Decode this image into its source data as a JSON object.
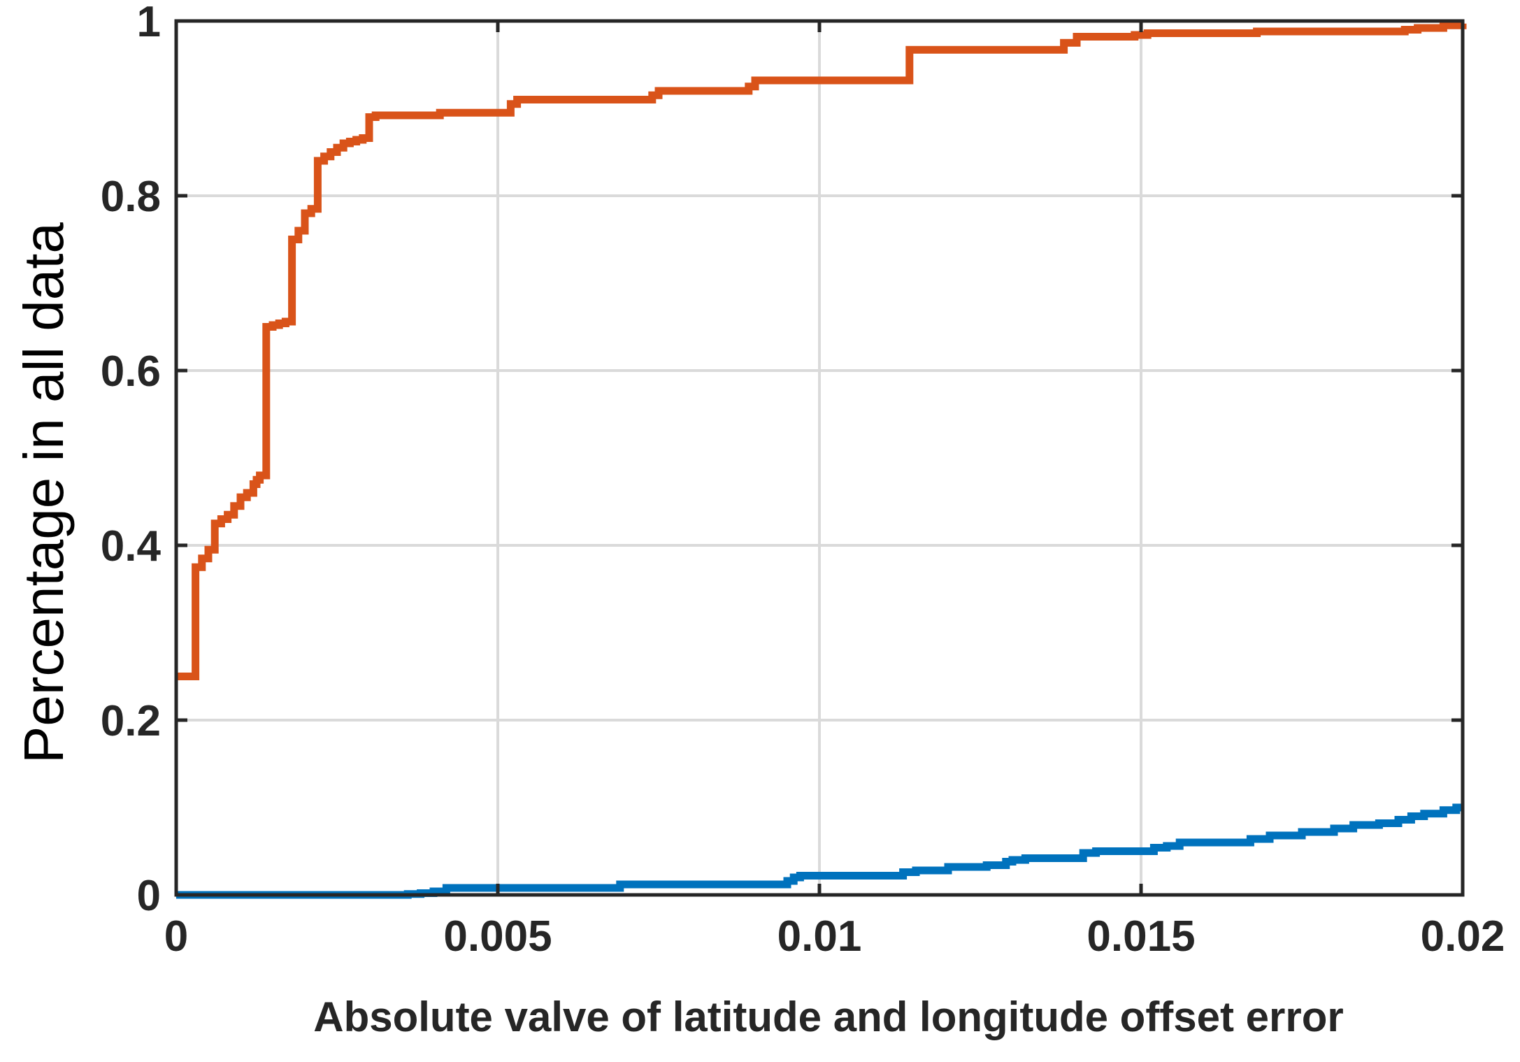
{
  "chart_data": {
    "type": "line",
    "xlabel": "Absolute valve of latitude and longitude offset error",
    "ylabel": "Percentage in all data",
    "xlim": [
      0,
      0.02
    ],
    "ylim": [
      0,
      1
    ],
    "xticks": [
      0,
      0.005,
      0.01,
      0.015,
      0.02
    ],
    "xtick_labels": [
      "0",
      "0.005",
      "0.01",
      "0.015",
      "0.02"
    ],
    "yticks": [
      0,
      0.2,
      0.4,
      0.6,
      0.8,
      1
    ],
    "ytick_labels": [
      "0",
      "0.2",
      "0.4",
      "0.6",
      "0.8",
      "1"
    ],
    "grid": true,
    "step": true,
    "series": [
      {
        "color": "#D95319",
        "x": [
          0,
          0.0003,
          0.0004,
          0.0005,
          0.0006,
          0.0007,
          0.0008,
          0.0009,
          0.001,
          0.0011,
          0.0012,
          0.00125,
          0.0013,
          0.0014,
          0.0015,
          0.0016,
          0.0017,
          0.0018,
          0.0018,
          0.0019,
          0.002,
          0.0021,
          0.0022,
          0.0023,
          0.0024,
          0.0025,
          0.0026,
          0.0027,
          0.0028,
          0.0029,
          0.003,
          0.0031,
          0.0041,
          0.0052,
          0.0053,
          0.0074,
          0.0075,
          0.0089,
          0.009,
          0.0114,
          0.0138,
          0.014,
          0.0149,
          0.0151,
          0.0168,
          0.0191,
          0.0193,
          0.0197,
          0.02
        ],
        "y": [
          0.25,
          0.375,
          0.385,
          0.395,
          0.425,
          0.43,
          0.435,
          0.445,
          0.455,
          0.46,
          0.47,
          0.475,
          0.48,
          0.65,
          0.652,
          0.654,
          0.656,
          0.75,
          0.75,
          0.76,
          0.78,
          0.785,
          0.84,
          0.845,
          0.85,
          0.855,
          0.86,
          0.862,
          0.864,
          0.866,
          0.89,
          0.892,
          0.895,
          0.905,
          0.91,
          0.915,
          0.92,
          0.925,
          0.932,
          0.967,
          0.975,
          0.982,
          0.984,
          0.986,
          0.988,
          0.99,
          0.992,
          0.995,
          0.997
        ]
      },
      {
        "color": "#0072BD",
        "x": [
          0,
          0.0036,
          0.0038,
          0.004,
          0.0042,
          0.0069,
          0.0095,
          0.0096,
          0.0097,
          0.0113,
          0.0115,
          0.012,
          0.0126,
          0.0129,
          0.013,
          0.0132,
          0.0141,
          0.0143,
          0.0152,
          0.0154,
          0.0156,
          0.0167,
          0.017,
          0.0175,
          0.018,
          0.0183,
          0.0187,
          0.019,
          0.0192,
          0.0194,
          0.0197,
          0.0199
        ],
        "y": [
          0,
          0.001,
          0.002,
          0.004,
          0.008,
          0.012,
          0.016,
          0.02,
          0.022,
          0.026,
          0.028,
          0.032,
          0.034,
          0.038,
          0.04,
          0.042,
          0.048,
          0.05,
          0.054,
          0.056,
          0.06,
          0.064,
          0.068,
          0.072,
          0.076,
          0.08,
          0.082,
          0.086,
          0.09,
          0.093,
          0.097,
          0.1
        ]
      }
    ]
  }
}
